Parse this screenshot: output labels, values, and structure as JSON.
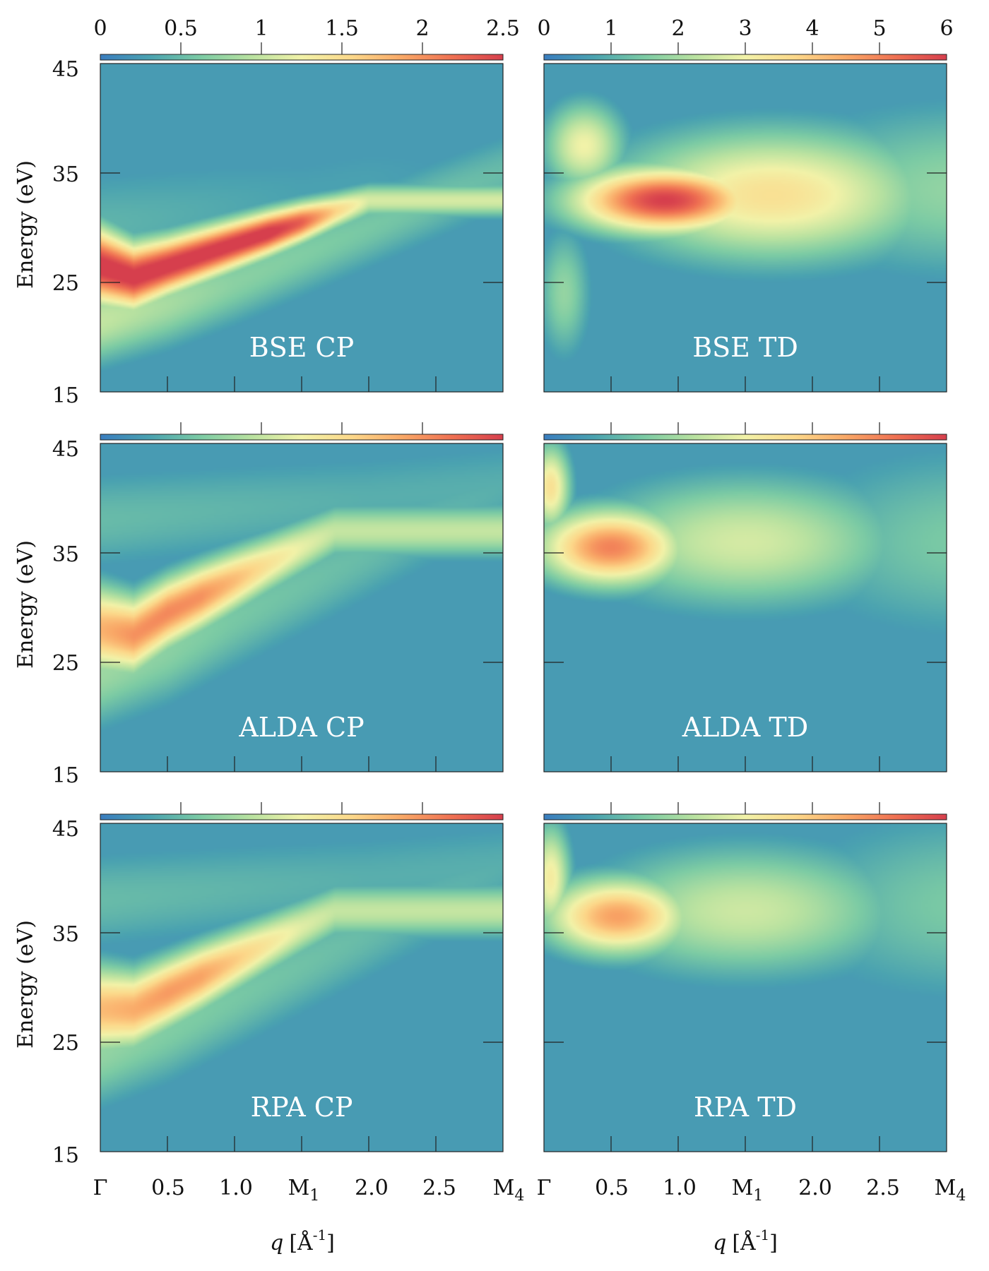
{
  "chart_data": {
    "type": "heatmap",
    "colormap": [
      "#3a7dbf",
      "#4ba3b0",
      "#7ccba4",
      "#b9e2a0",
      "#f2f2a8",
      "#fcd88a",
      "#f9a867",
      "#ef7052",
      "#d63f4d"
    ],
    "colorbars": [
      {
        "ticks": [
          "0",
          "0.5",
          "1",
          "1.5",
          "2",
          "2.5"
        ],
        "range": [
          0,
          2.5
        ]
      },
      {
        "ticks": [
          "0",
          "1",
          "2",
          "3",
          "4",
          "5",
          "6"
        ],
        "range": [
          0,
          6
        ]
      }
    ],
    "ylabel": "Energy (eV)",
    "yticks": [
      "15",
      "25",
      "35",
      "45"
    ],
    "ylim": [
      15,
      45
    ],
    "xticks": [
      "Γ",
      "0.5",
      "1.0",
      "M",
      "2.0",
      "2.5",
      "M"
    ],
    "xtick_subscripts": [
      "",
      "",
      "",
      "1",
      "",
      "",
      "4"
    ],
    "xlabel": {
      "symbol": "q",
      "unit": "[Å",
      "exponent": "-1",
      "close": "]"
    },
    "panels": [
      {
        "label": "BSE CP",
        "colorbar": 0,
        "features": [
          {
            "type": "band",
            "q": [
              0.0,
              0.25,
              0.5,
              0.75,
              1.0,
              1.25,
              1.5,
              1.75,
              2.0
            ],
            "energy": [
              26.5,
              25.5,
              26.5,
              27.5,
              28.5,
              29.5,
              30.5,
              31.5,
              32.5
            ],
            "value": [
              2.6,
              2.6,
              2.6,
              2.6,
              2.6,
              2.6,
              2.3,
              1.6,
              1.1
            ],
            "width": [
              3.5,
              3.0,
              2.6,
              2.4,
              2.2,
              2.0,
              1.8,
              1.6,
              1.5
            ]
          },
          {
            "type": "band",
            "q": [
              0.0,
              0.5,
              1.0,
              1.5,
              2.0,
              2.5,
              3.0
            ],
            "energy": [
              21.5,
              23.0,
              25.0,
              27.5,
              30.0,
              32.5,
              35.0
            ],
            "value": [
              1.0,
              0.85,
              0.7,
              0.65,
              0.6,
              0.55,
              0.5
            ],
            "width": [
              4,
              4,
              4,
              4,
              4,
              4,
              4
            ]
          },
          {
            "type": "band",
            "q": [
              0.0,
              0.5,
              1.0,
              1.5,
              2.0,
              2.5,
              3.0
            ],
            "energy": [
              30,
              31,
              32,
              33,
              34,
              35,
              36
            ],
            "value": [
              0.45,
              0.4,
              0.35,
              0.3,
              0.3,
              0.25,
              0.25
            ],
            "width": [
              6,
              6,
              6,
              6,
              6,
              6,
              6
            ]
          }
        ]
      },
      {
        "label": "BSE TD",
        "colorbar": 1,
        "features": [
          {
            "type": "blob",
            "q": 0.9,
            "energy": 32.5,
            "value": 6.0,
            "sq": 0.7,
            "se": 3.0
          },
          {
            "type": "blob",
            "q": 1.7,
            "energy": 33.0,
            "value": 3.5,
            "sq": 1.2,
            "se": 6.0
          },
          {
            "type": "blob",
            "q": 3.2,
            "energy": 33.5,
            "value": 1.8,
            "sq": 1.6,
            "se": 8.0
          },
          {
            "type": "blob",
            "q": 0.3,
            "energy": 37.5,
            "value": 3.0,
            "sq": 0.3,
            "se": 4.0
          },
          {
            "type": "blob",
            "q": 0.15,
            "energy": 24.0,
            "value": 1.8,
            "sq": 0.2,
            "se": 6.0
          }
        ]
      },
      {
        "label": "ALDA CP",
        "colorbar": 0,
        "features": [
          {
            "type": "band",
            "q": [
              0.0,
              0.25,
              0.5,
              0.75,
              1.0,
              1.25,
              1.5,
              1.75
            ],
            "energy": [
              28.0,
              27.5,
              29.5,
              31.0,
              32.5,
              34.0,
              35.5,
              37.0
            ],
            "value": [
              1.8,
              2.0,
              2.05,
              2.0,
              1.75,
              1.45,
              1.2,
              1.0
            ],
            "width": [
              4.0,
              3.5,
              3.2,
              3.0,
              2.8,
              2.6,
              2.5,
              2.4
            ]
          },
          {
            "type": "band",
            "q": [
              0.0,
              0.5,
              1.0,
              1.5,
              2.0,
              2.5,
              3.0
            ],
            "energy": [
              24,
              26,
              29,
              32,
              35,
              38,
              41
            ],
            "value": [
              0.8,
              0.7,
              0.6,
              0.55,
              0.5,
              0.45,
              0.4
            ],
            "width": [
              5,
              5,
              5,
              5,
              5,
              5,
              5
            ]
          },
          {
            "type": "band",
            "q": [
              0.0,
              1.0,
              2.0,
              3.0
            ],
            "energy": [
              38,
              39,
              40,
              41
            ],
            "value": [
              0.5,
              0.45,
              0.4,
              0.4
            ],
            "width": [
              5,
              5,
              5,
              5
            ]
          }
        ]
      },
      {
        "label": "ALDA TD",
        "colorbar": 1,
        "features": [
          {
            "type": "blob",
            "q": 0.5,
            "energy": 35.5,
            "value": 5.0,
            "sq": 0.55,
            "se": 3.5
          },
          {
            "type": "blob",
            "q": 1.5,
            "energy": 36.0,
            "value": 2.6,
            "sq": 1.2,
            "se": 6.0
          },
          {
            "type": "blob",
            "q": 3.2,
            "energy": 36.0,
            "value": 1.5,
            "sq": 1.5,
            "se": 9.0
          },
          {
            "type": "blob",
            "q": 0.05,
            "energy": 41.0,
            "value": 3.5,
            "sq": 0.15,
            "se": 4.0
          }
        ]
      },
      {
        "label": "RPA CP",
        "colorbar": 0,
        "features": [
          {
            "type": "band",
            "q": [
              0.0,
              0.25,
              0.5,
              0.75,
              1.0,
              1.25,
              1.5,
              1.75
            ],
            "energy": [
              28.0,
              28.0,
              29.5,
              31.0,
              32.5,
              34.0,
              35.5,
              37.0
            ],
            "value": [
              1.75,
              1.85,
              1.95,
              1.9,
              1.65,
              1.4,
              1.15,
              1.0
            ],
            "width": [
              4.0,
              3.5,
              3.2,
              3.0,
              2.8,
              2.6,
              2.5,
              2.4
            ]
          },
          {
            "type": "band",
            "q": [
              0.0,
              0.5,
              1.0,
              1.5,
              2.0,
              2.5,
              3.0
            ],
            "energy": [
              24,
              26,
              29,
              32,
              35,
              38,
              41
            ],
            "value": [
              0.75,
              0.65,
              0.6,
              0.55,
              0.5,
              0.45,
              0.4
            ],
            "width": [
              5,
              5,
              5,
              5,
              5,
              5,
              5
            ]
          },
          {
            "type": "band",
            "q": [
              0.0,
              1.0,
              2.0,
              3.0
            ],
            "energy": [
              38,
              39,
              40,
              41
            ],
            "value": [
              0.5,
              0.45,
              0.4,
              0.4
            ],
            "width": [
              5,
              5,
              5,
              5
            ]
          }
        ]
      },
      {
        "label": "RPA TD",
        "colorbar": 1,
        "features": [
          {
            "type": "blob",
            "q": 0.55,
            "energy": 36.5,
            "value": 4.6,
            "sq": 0.55,
            "se": 3.5
          },
          {
            "type": "blob",
            "q": 1.5,
            "energy": 37.0,
            "value": 2.5,
            "sq": 1.2,
            "se": 6.0
          },
          {
            "type": "blob",
            "q": 3.2,
            "energy": 37.5,
            "value": 1.5,
            "sq": 1.5,
            "se": 9.0
          },
          {
            "type": "blob",
            "q": 0.05,
            "energy": 40.0,
            "value": 3.2,
            "sq": 0.15,
            "se": 5.0
          }
        ]
      }
    ]
  }
}
